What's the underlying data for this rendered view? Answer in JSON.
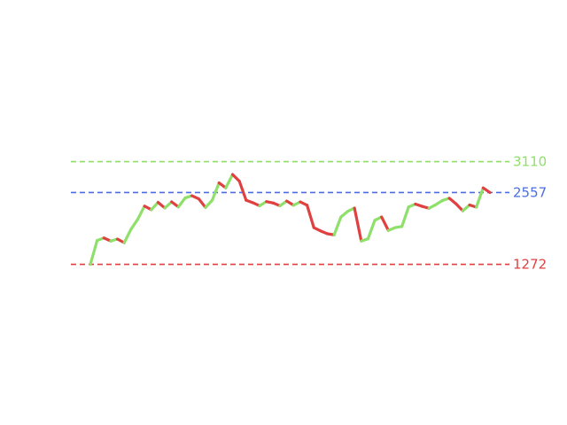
{
  "chart_data": {
    "type": "line",
    "title": "",
    "xlabel": "",
    "ylabel": "",
    "ylim": [
      -1600,
      6000
    ],
    "grid": false,
    "legend": "none",
    "up_color": "#8ee06a",
    "down_color": "#e04040",
    "series": [
      {
        "values": [
          1272,
          1700,
          1745,
          1690,
          1725,
          1660,
          1900,
          2080,
          2315,
          2250,
          2380,
          2280,
          2390,
          2300,
          2460,
          2500,
          2445,
          2290,
          2420,
          2730,
          2640,
          2880,
          2760,
          2420,
          2375,
          2320,
          2395,
          2370,
          2320,
          2405,
          2330,
          2390,
          2330,
          1930,
          1870,
          1820,
          1800,
          2120,
          2220,
          2280,
          1690,
          1730,
          2060,
          2120,
          1880,
          1930,
          1950,
          2300,
          2350,
          2310,
          2275,
          2340,
          2415,
          2455,
          2355,
          2230,
          2335,
          2295,
          2640,
          2557
        ]
      }
    ],
    "reference_lines": [
      {
        "label": "3110",
        "value": 3110,
        "color": "#8ee06a"
      },
      {
        "label": "2557",
        "value": 2557,
        "color": "#4a6ee0"
      },
      {
        "label": "1272",
        "value": 1272,
        "color": "#e04040"
      }
    ]
  }
}
